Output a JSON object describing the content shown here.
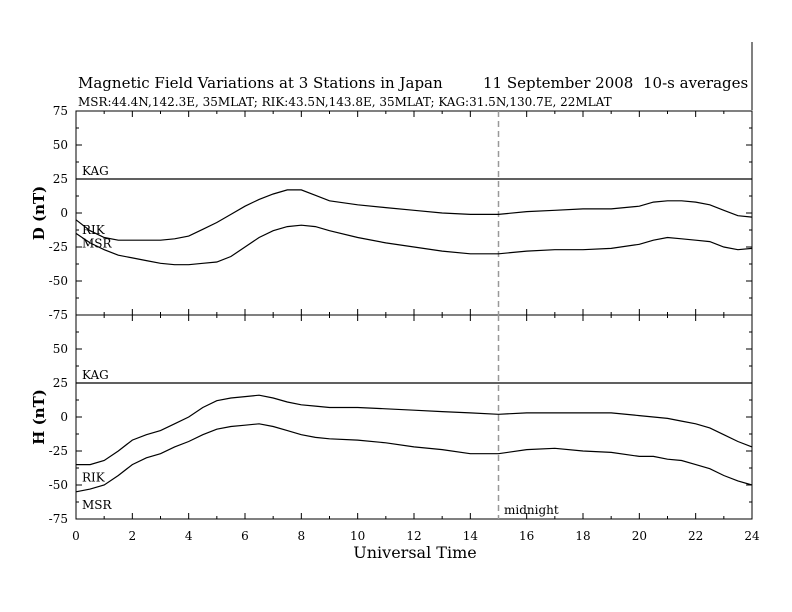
{
  "title": {
    "main": "Magnetic Field Variations at 3 Stations in Japan",
    "date": "11 September 2008",
    "averaging": "10-s averages",
    "stations": "MSR:44.4N,142.3E, 35MLAT;  RIK:43.5N,143.8E, 35MLAT;  KAG:31.5N,130.7E, 22MLAT"
  },
  "xaxis": {
    "label": "Universal Time",
    "ticks": [
      "0",
      "2",
      "4",
      "6",
      "8",
      "10",
      "12",
      "14",
      "16",
      "18",
      "20",
      "22",
      "24"
    ]
  },
  "midnight_label": "midnight",
  "panels": [
    {
      "ylabel": "D (nT)",
      "ticks": [
        "75",
        "50",
        "25",
        "0",
        "-25",
        "-50",
        "-75"
      ]
    },
    {
      "ylabel": "H (nT)",
      "ticks": [
        "75",
        "50",
        "25",
        "0",
        "-25",
        "-50",
        "-75"
      ]
    }
  ],
  "chart_data": [
    {
      "type": "line",
      "component": "D",
      "xlim": [
        0,
        24
      ],
      "ylim": [
        -75,
        75
      ],
      "midnight_ut": 15,
      "series": [
        {
          "name": "KAG",
          "x": [
            0,
            24
          ],
          "y": [
            25,
            25
          ]
        },
        {
          "name": "RIK",
          "x": [
            0,
            0.5,
            1,
            1.5,
            2,
            2.5,
            3,
            3.5,
            4,
            4.5,
            5,
            5.5,
            6,
            6.5,
            7,
            7.5,
            8,
            8.5,
            9,
            10,
            11,
            12,
            13,
            14,
            15,
            16,
            17,
            18,
            19,
            20,
            20.5,
            21,
            21.5,
            22,
            22.5,
            23,
            23.5,
            24
          ],
          "y": [
            -5,
            -13,
            -18,
            -20,
            -20,
            -20,
            -20,
            -19,
            -17,
            -12,
            -7,
            -1,
            5,
            10,
            14,
            17,
            17,
            13,
            9,
            6,
            4,
            2,
            0,
            -1,
            -1,
            1,
            2,
            3,
            3,
            5,
            8,
            9,
            9,
            8,
            6,
            2,
            -2,
            -3
          ]
        },
        {
          "name": "MSR",
          "x": [
            0,
            0.5,
            1,
            1.5,
            2,
            2.5,
            3,
            3.5,
            4,
            4.5,
            5,
            5.5,
            6,
            6.5,
            7,
            7.5,
            8,
            8.5,
            9,
            10,
            11,
            12,
            13,
            14,
            15,
            16,
            17,
            18,
            19,
            20,
            20.5,
            21,
            21.5,
            22,
            22.5,
            23,
            23.5,
            24
          ],
          "y": [
            -15,
            -22,
            -27,
            -31,
            -33,
            -35,
            -37,
            -38,
            -38,
            -37,
            -36,
            -32,
            -25,
            -18,
            -13,
            -10,
            -9,
            -10,
            -13,
            -18,
            -22,
            -25,
            -28,
            -30,
            -30,
            -28,
            -27,
            -27,
            -26,
            -23,
            -20,
            -18,
            -19,
            -20,
            -21,
            -25,
            -27,
            -26
          ]
        }
      ]
    },
    {
      "type": "line",
      "component": "H",
      "xlim": [
        0,
        24
      ],
      "ylim": [
        -75,
        75
      ],
      "midnight_ut": 15,
      "series": [
        {
          "name": "KAG",
          "x": [
            0,
            24
          ],
          "y": [
            25,
            25
          ]
        },
        {
          "name": "RIK",
          "x": [
            0,
            0.5,
            1,
            1.5,
            2,
            2.5,
            3,
            3.5,
            4,
            4.5,
            5,
            5.5,
            6,
            6.5,
            7,
            7.5,
            8,
            8.5,
            9,
            10,
            11,
            12,
            13,
            14,
            15,
            16,
            17,
            18,
            19,
            20,
            20.5,
            21,
            21.5,
            22,
            22.5,
            23,
            23.5,
            24
          ],
          "y": [
            -35,
            -35,
            -32,
            -25,
            -17,
            -13,
            -10,
            -5,
            0,
            7,
            12,
            14,
            15,
            16,
            14,
            11,
            9,
            8,
            7,
            7,
            6,
            5,
            4,
            3,
            2,
            3,
            3,
            3,
            3,
            1,
            0,
            -1,
            -3,
            -5,
            -8,
            -13,
            -18,
            -22
          ]
        },
        {
          "name": "MSR",
          "x": [
            0,
            0.5,
            1,
            1.5,
            2,
            2.5,
            3,
            3.5,
            4,
            4.5,
            5,
            5.5,
            6,
            6.5,
            7,
            7.5,
            8,
            8.5,
            9,
            10,
            11,
            12,
            13,
            14,
            15,
            16,
            17,
            18,
            19,
            20,
            20.5,
            21,
            21.5,
            22,
            22.5,
            23,
            23.5,
            24
          ],
          "y": [
            -55,
            -53,
            -50,
            -43,
            -35,
            -30,
            -27,
            -22,
            -18,
            -13,
            -9,
            -7,
            -6,
            -5,
            -7,
            -10,
            -13,
            -15,
            -16,
            -17,
            -19,
            -22,
            -24,
            -27,
            -27,
            -24,
            -23,
            -25,
            -26,
            -29,
            -29,
            -31,
            -32,
            -35,
            -38,
            -43,
            -47,
            -50
          ]
        }
      ]
    }
  ]
}
